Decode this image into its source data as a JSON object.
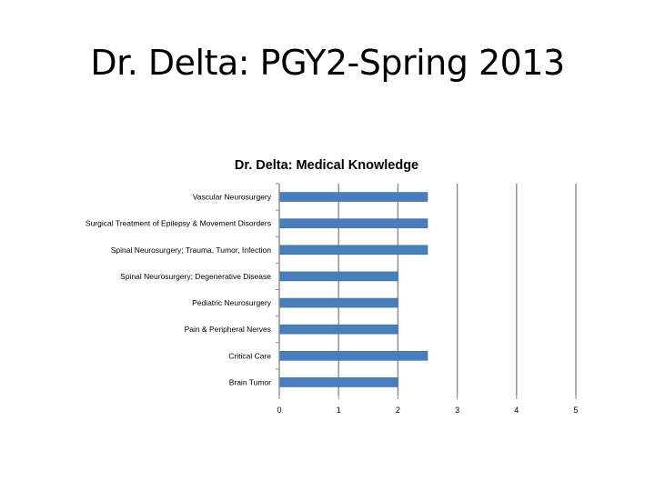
{
  "slide": {
    "title": "Dr. Delta: PGY2-Spring 2013"
  },
  "chart_data": {
    "type": "bar",
    "orientation": "horizontal",
    "title": "Dr. Delta: Medical Knowledge",
    "categories": [
      "Vascular Neurosurgery",
      "Surgical Treatment of Epilepsy & Movement Disorders",
      "Spinal Neurosurgery; Trauma, Tumor, Infection",
      "Spinal Neurosurgery; Degenerative Disease",
      "Pediatric Neurosurgery",
      "Pain & Peripheral Nerves",
      "Critical Care",
      "Brain Tumor"
    ],
    "values": [
      2.5,
      2.5,
      2.5,
      2,
      2,
      2,
      2.5,
      2
    ],
    "xlim": [
      0,
      5
    ],
    "xticks": [
      0,
      1,
      2,
      3,
      4,
      5
    ],
    "grid": true,
    "legend": "none",
    "colors": {
      "bar_fill": "#4a7ebb",
      "bar_stroke": "#3a6aa5",
      "gridline": "#8c8c8c",
      "axis": "#8c8c8c"
    }
  }
}
